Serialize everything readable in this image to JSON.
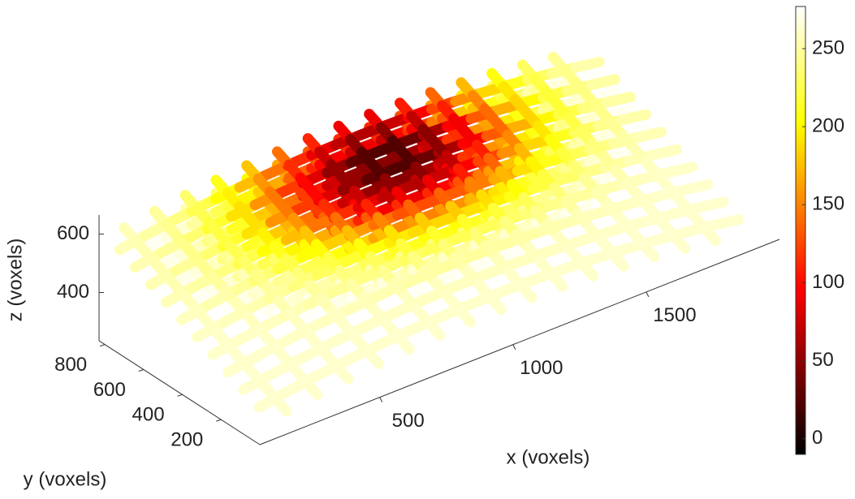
{
  "chart_data": {
    "type": "surface3d",
    "xlabel": "x (voxels)",
    "ylabel": "y (voxels)",
    "zlabel": "z (voxels)",
    "xlim": [
      50,
      2000
    ],
    "xticks": [
      500,
      1000,
      1500
    ],
    "ylim": [
      0,
      830
    ],
    "yticks": [
      200,
      400,
      600,
      800
    ],
    "zlim": [
      235,
      665
    ],
    "zticks": [
      400,
      600
    ],
    "colorbar": {
      "colormap": "hot",
      "clim": [
        -10,
        277
      ],
      "ticks": [
        0,
        50,
        100,
        150,
        200,
        250
      ]
    }
  }
}
